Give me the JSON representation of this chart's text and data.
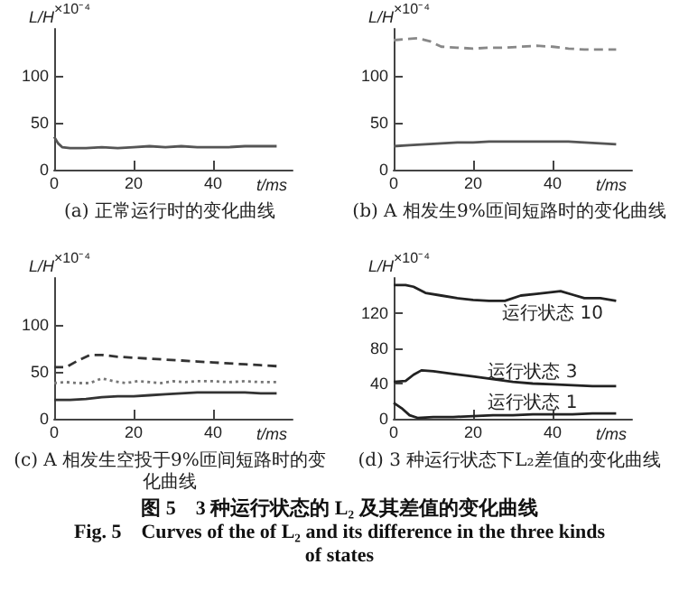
{
  "chart_data": [
    {
      "type": "line",
      "title": "(a) 正常运行时的变化曲线",
      "xlabel": "t/ms",
      "ylabel": "L/H",
      "annotations": [
        "×10⁻⁴"
      ],
      "xlim": [
        0,
        60
      ],
      "xticks": [
        0,
        20,
        40
      ],
      "ylim": [
        0,
        150
      ],
      "yticks": [
        0,
        50,
        100
      ],
      "marker": "none",
      "series": [
        {
          "color": "#555555",
          "line_style": "solid",
          "x": [
            0,
            1,
            2,
            4,
            8,
            12,
            16,
            20,
            24,
            28,
            32,
            36,
            40,
            44,
            48,
            52,
            56
          ],
          "values": [
            35,
            28,
            24,
            23,
            23,
            24,
            23,
            24,
            25,
            24,
            25,
            24,
            24,
            24,
            25,
            25,
            25
          ]
        }
      ]
    },
    {
      "type": "line",
      "title": "(b) A 相发生9%匝间短路时的变化曲线",
      "xlabel": "t/ms",
      "ylabel": "L/H",
      "annotations": [
        "×10⁻⁴"
      ],
      "xlim": [
        0,
        60
      ],
      "xticks": [
        0,
        20,
        40
      ],
      "ylim": [
        0,
        150
      ],
      "yticks": [
        0,
        50,
        100
      ],
      "marker": "none",
      "series": [
        {
          "color": "#888888",
          "line_style": "dashed",
          "x": [
            0,
            3,
            6,
            9,
            12,
            16,
            20,
            24,
            28,
            32,
            36,
            40,
            44,
            48,
            52,
            56
          ],
          "values": [
            138,
            139,
            140,
            137,
            131,
            130,
            129,
            130,
            130,
            131,
            132,
            131,
            129,
            128,
            128,
            128
          ]
        },
        {
          "color": "#555555",
          "line_style": "solid",
          "x": [
            0,
            4,
            8,
            12,
            16,
            20,
            24,
            28,
            32,
            36,
            40,
            44,
            48,
            52,
            56
          ],
          "values": [
            25,
            26,
            27,
            28,
            29,
            29,
            30,
            30,
            30,
            30,
            30,
            30,
            29,
            28,
            27
          ]
        }
      ]
    },
    {
      "type": "line",
      "title": "(c) A 相发生空投于9%匝间短路时的变化曲线",
      "xlabel": "t/ms",
      "ylabel": "L/H",
      "annotations": [
        "×10⁻⁴"
      ],
      "xlim": [
        0,
        60
      ],
      "xticks": [
        0,
        20,
        40
      ],
      "ylim": [
        0,
        150
      ],
      "yticks": [
        0,
        50,
        100
      ],
      "marker": "none",
      "series": [
        {
          "color": "#333333",
          "line_style": "dashed",
          "x": [
            0,
            3,
            6,
            9,
            12,
            16,
            20,
            24,
            28,
            32,
            36,
            40,
            44,
            48,
            52,
            56
          ],
          "values": [
            55,
            55,
            62,
            68,
            68,
            66,
            65,
            64,
            63,
            62,
            61,
            60,
            59,
            58,
            57,
            56
          ]
        },
        {
          "color": "#777777",
          "line_style": "dotted",
          "x": [
            0,
            3,
            6,
            9,
            12,
            15,
            18,
            21,
            24,
            27,
            30,
            33,
            36,
            40,
            44,
            48,
            52,
            56
          ],
          "values": [
            38,
            39,
            38,
            38,
            43,
            40,
            38,
            40,
            39,
            38,
            40,
            39,
            40,
            40,
            39,
            40,
            39,
            39
          ]
        },
        {
          "color": "#333333",
          "line_style": "solid",
          "x": [
            0,
            4,
            8,
            12,
            16,
            20,
            24,
            28,
            32,
            36,
            40,
            44,
            48,
            52,
            56
          ],
          "values": [
            20,
            20,
            21,
            23,
            24,
            24,
            25,
            26,
            27,
            28,
            28,
            28,
            28,
            27,
            27
          ]
        }
      ]
    },
    {
      "type": "line",
      "title": "(d) 3 种运行状态下L₂差值的变化曲线",
      "xlabel": "t/ms",
      "ylabel": "L/H",
      "annotations": [
        "×10⁻⁴",
        "图 5　3 种运行状态的 L₂ 及其差值的变化曲线",
        "Fig. 5　Curves of the of L₂ and its difference in the three kinds of states"
      ],
      "xlim": [
        0,
        60
      ],
      "xticks": [
        0,
        20,
        40
      ],
      "ylim": [
        0,
        160
      ],
      "yticks": [
        0,
        40,
        80,
        120
      ],
      "marker": "none",
      "series": [
        {
          "name": "运行状态 10",
          "color": "#222222",
          "line_style": "solid",
          "x": [
            0,
            3,
            5,
            8,
            12,
            16,
            20,
            24,
            28,
            32,
            36,
            40,
            42,
            45,
            48,
            52,
            56
          ],
          "values": [
            152,
            152,
            150,
            143,
            140,
            137,
            135,
            134,
            134,
            140,
            142,
            144,
            145,
            141,
            137,
            137,
            134
          ]
        },
        {
          "name": "运行状态 3",
          "color": "#222222",
          "line_style": "solid",
          "x": [
            0,
            3,
            5,
            7,
            10,
            15,
            20,
            25,
            30,
            35,
            40,
            45,
            50,
            56
          ],
          "values": [
            42,
            43,
            50,
            55,
            54,
            51,
            48,
            45,
            42,
            40,
            39,
            38,
            37,
            37
          ]
        },
        {
          "name": "运行状态 1",
          "color": "#222222",
          "line_style": "solid",
          "x": [
            0,
            2,
            4,
            6,
            10,
            15,
            20,
            25,
            30,
            35,
            40,
            45,
            50,
            56
          ],
          "values": [
            18,
            12,
            4,
            1,
            2,
            2,
            3,
            4,
            4,
            5,
            5,
            5,
            6,
            6
          ]
        }
      ]
    }
  ]
}
